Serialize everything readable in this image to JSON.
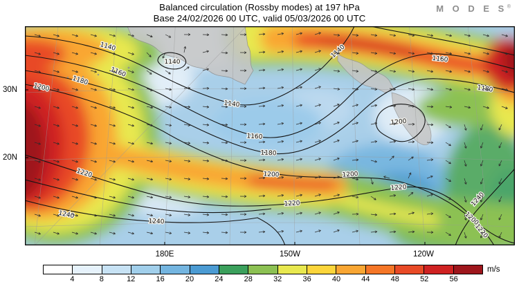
{
  "header": {
    "title": "Balanced circulation (Rossby modes) at 197 hPa",
    "subtitle": "Base 24/02/2026 00 UTC, valid 05/03/2026 00 UTC"
  },
  "brand": {
    "logo_text": "M O D E S",
    "registered_mark": "®"
  },
  "chart_data": {
    "type": "heatmap",
    "subtype": "filled-contour meteorological map with overlaid contour lines and wind vectors",
    "title": "Balanced circulation (Rossby modes) at 197 hPa",
    "subtitle": "Base 24/02/2026 00 UTC, valid 05/03/2026 00 UTC",
    "pressure_level_hPa": 197,
    "base_time": "24/02/2026 00 UTC",
    "valid_time": "05/03/2026 00 UTC",
    "shading_variable": "balanced (Rossby-mode) wind speed",
    "unit": "m/s",
    "overlays": [
      "height contours",
      "wind vectors",
      "coastlines",
      "graticule"
    ],
    "colorbar": {
      "position": "bottom",
      "unit": "m/s",
      "ticks": [
        4,
        8,
        12,
        16,
        20,
        24,
        28,
        32,
        36,
        40,
        44,
        48,
        52,
        56
      ],
      "colors": [
        "#ffffff",
        "#e6f2fb",
        "#c7e2f4",
        "#a1cfeb",
        "#74b5e0",
        "#4b9bd3",
        "#3ba05c",
        "#8cc153",
        "#e8e84f",
        "#fcd53b",
        "#f9a633",
        "#f57627",
        "#e84a26",
        "#cf2222",
        "#9e161c"
      ]
    },
    "contours": {
      "labeled_values": [
        1140,
        1160,
        1180,
        1200,
        1220,
        1240
      ],
      "interval": 20,
      "annotations": [
        "closed 1140 contour near top-center",
        "closed 1200 contour right of center"
      ]
    },
    "axes": {
      "lat_labels": [
        "30N",
        "20N"
      ],
      "lon_labels": [
        "180E",
        "150W",
        "120W"
      ]
    }
  }
}
